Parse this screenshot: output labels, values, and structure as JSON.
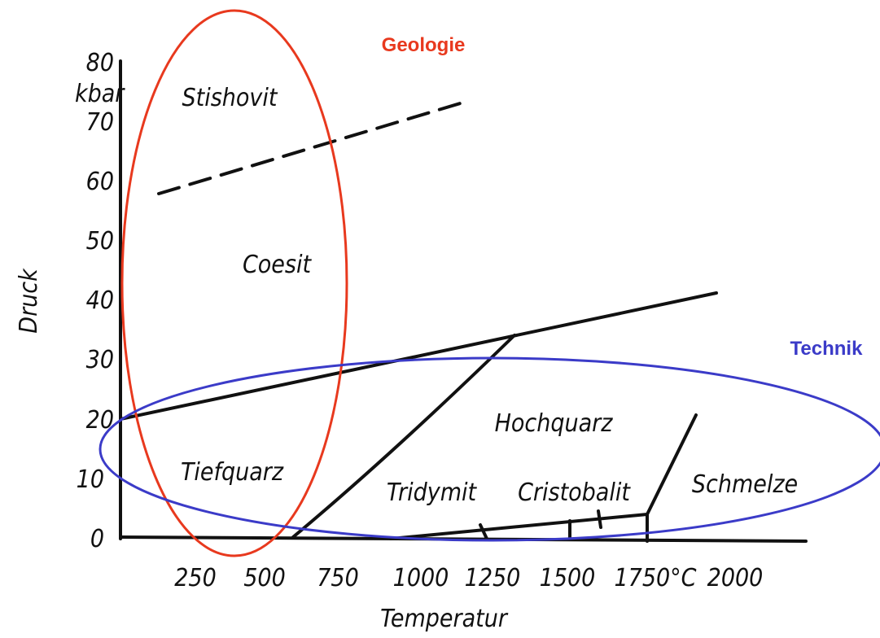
{
  "annotations": {
    "geology": "Geologie",
    "technology": "Technik"
  },
  "axes": {
    "y_label": "Druck",
    "y_unit": "kbar",
    "x_label": "Temperatur",
    "y_ticks": [
      "0",
      "10",
      "20",
      "30",
      "40",
      "50",
      "60",
      "70",
      "80"
    ],
    "x_ticks": [
      "250",
      "500",
      "750",
      "1000",
      "1250",
      "1500",
      "1750°C",
      "2000"
    ]
  },
  "phases": [
    "Stishovit",
    "Coesit",
    "Tiefquarz",
    "Hochquarz",
    "Tridymit",
    "Cristobalit",
    "Schmelze"
  ]
}
